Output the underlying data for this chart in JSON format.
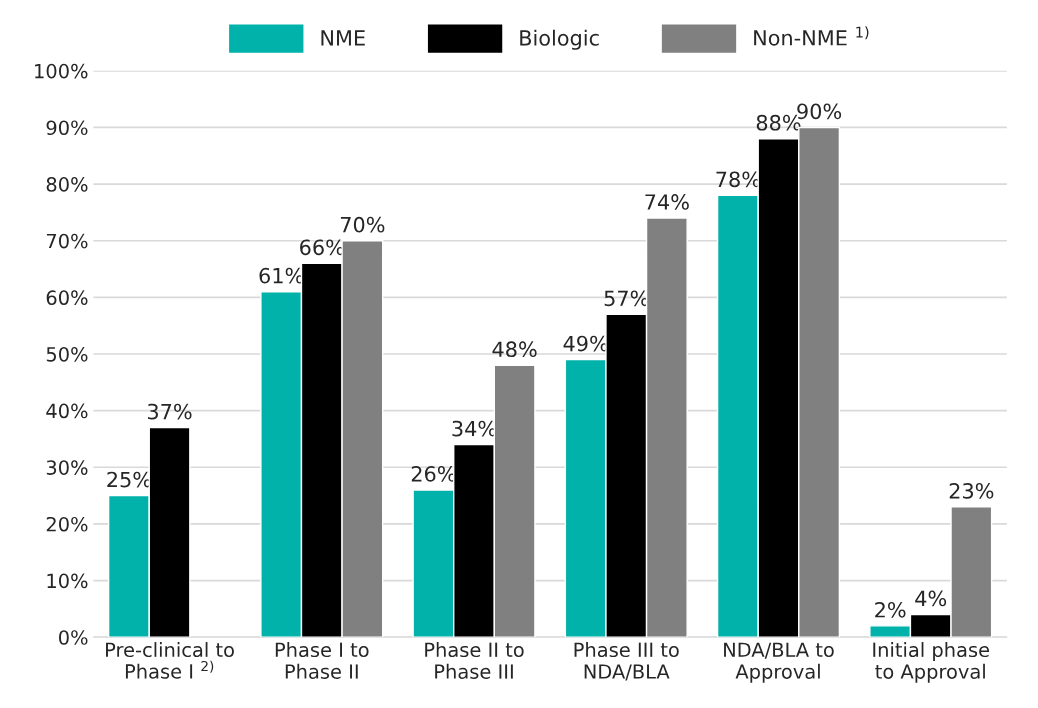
{
  "chart_data": {
    "type": "bar",
    "categories": [
      "Pre-clinical to\nPhase I $^{2)}$",
      "Phase I to\nPhase II",
      "Phase II to\nPhase III",
      "Phase III to\nNDA/BLA",
      "NDA/BLA to\nApproval",
      "Initial phase\nto Approval"
    ],
    "series": [
      {
        "name": "NME",
        "color": "#00b2a9",
        "values": [
          25,
          61,
          26,
          49,
          78,
          2
        ],
        "value_labels": [
          "25%",
          "61%",
          "26%",
          "49%",
          "78%",
          "2%"
        ]
      },
      {
        "name": "Biologic",
        "color": "#000000",
        "values": [
          37,
          66,
          34,
          57,
          88,
          4
        ],
        "value_labels": [
          "37%",
          "66%",
          "34%",
          "57%",
          "88%",
          "4%"
        ]
      },
      {
        "name": "Non-NME $^{1)}$",
        "color": "#808080",
        "values": [
          null,
          70,
          48,
          74,
          90,
          23
        ],
        "value_labels": [
          null,
          "70%",
          "48%",
          "74%",
          "90%",
          "23%"
        ]
      }
    ],
    "ylim": [
      0,
      100
    ],
    "yticks": [
      {
        "value": 0,
        "label": "0%"
      },
      {
        "value": 10,
        "label": "10%"
      },
      {
        "value": 20,
        "label": "20%"
      },
      {
        "value": 30,
        "label": "30%"
      },
      {
        "value": 40,
        "label": "40%"
      },
      {
        "value": 50,
        "label": "50%"
      },
      {
        "value": 60,
        "label": "60%"
      },
      {
        "value": 70,
        "label": "70%"
      },
      {
        "value": 80,
        "label": "80%"
      },
      {
        "value": 90,
        "label": "90%"
      },
      {
        "value": 100,
        "label": "100%"
      }
    ],
    "grid": "y",
    "legend": "top"
  }
}
